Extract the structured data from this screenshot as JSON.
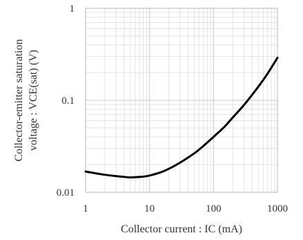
{
  "chart_data": {
    "type": "line",
    "title": "",
    "xlabel": "Collector current : IC (mA)",
    "ylabel_lines": [
      "Collector-emitter saturation",
      "voltage : VCE(sat) (V)"
    ],
    "xscale": "log",
    "yscale": "log",
    "xlim": [
      1,
      1000
    ],
    "ylim": [
      0.01,
      1
    ],
    "xticks": [
      1,
      10,
      100,
      1000
    ],
    "xtick_labels": [
      "1",
      "10",
      "100",
      "1000"
    ],
    "yticks": [
      0.01,
      0.1,
      1
    ],
    "ytick_labels": [
      "0.01",
      "0.1",
      "1"
    ],
    "grid": true,
    "legend": "none",
    "series": [
      {
        "color": "#000000",
        "x": [
          1,
          1.5,
          2,
          3,
          4,
          5,
          6,
          8,
          10,
          15,
          20,
          30,
          50,
          70,
          100,
          150,
          200,
          300,
          500,
          700,
          1000
        ],
        "y": [
          0.0168,
          0.016,
          0.0155,
          0.015,
          0.0147,
          0.0145,
          0.0146,
          0.0148,
          0.0152,
          0.0165,
          0.018,
          0.021,
          0.0265,
          0.032,
          0.04,
          0.052,
          0.065,
          0.089,
          0.14,
          0.195,
          0.29
        ]
      }
    ]
  }
}
